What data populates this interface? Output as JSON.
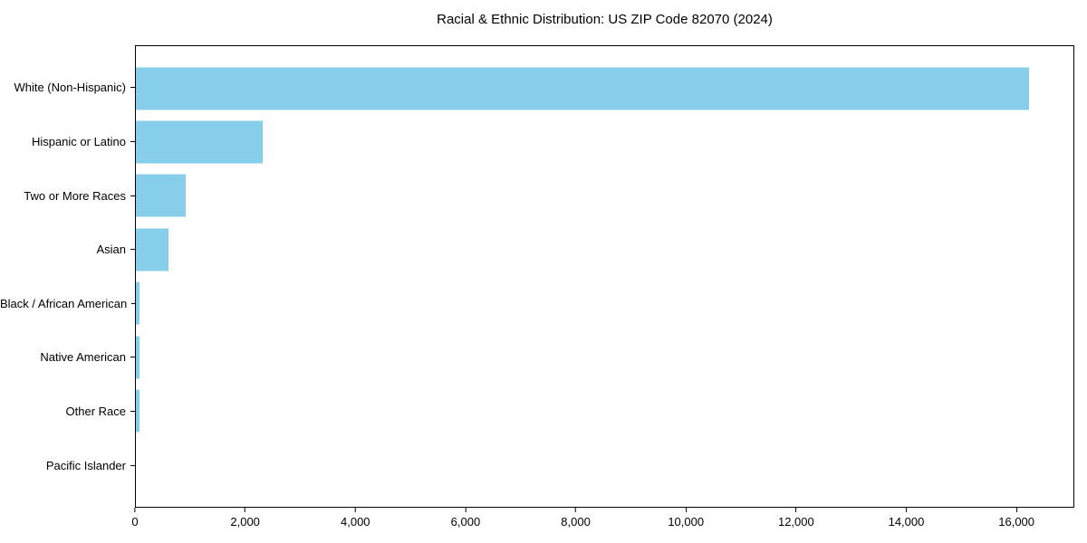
{
  "page": {
    "background_color": "#ffffff"
  },
  "chart_data": {
    "type": "bar",
    "orientation": "horizontal",
    "title": "Racial & Ethnic Distribution: US ZIP Code 82070 (2024)",
    "categories": [
      "White (Non-Hispanic)",
      "Hispanic or Latino",
      "Two or More Races",
      "Asian",
      "Black / African American",
      "Native American",
      "Other Race",
      "Pacific Islander"
    ],
    "values": [
      16250,
      2300,
      910,
      600,
      65,
      65,
      65,
      0
    ],
    "bar_color": "#87CEEB",
    "xlabel": "",
    "ylabel": "",
    "xlim": [
      0,
      17050
    ],
    "x_tick_values": [
      0,
      2000,
      4000,
      6000,
      8000,
      10000,
      12000,
      14000,
      16000
    ],
    "x_tick_labels": [
      "0",
      "2,000",
      "4,000",
      "6,000",
      "8,000",
      "10,000",
      "12,000",
      "14,000",
      "16,000"
    ],
    "grid": false,
    "legend": "none",
    "axis_color": "#000000",
    "text_color": "#000000"
  }
}
